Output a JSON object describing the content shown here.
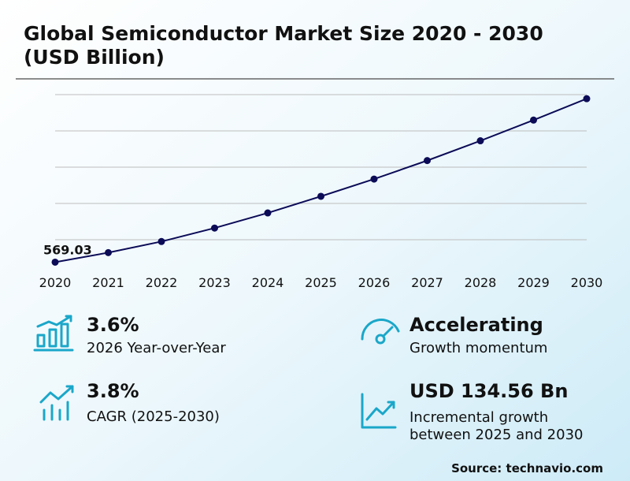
{
  "chart_data": {
    "type": "line",
    "title": [
      "Global Semiconductor Market Size 2020 - 2030",
      "(USD Billion)"
    ],
    "categories": [
      "2020",
      "2021",
      "2022",
      "2023",
      "2024",
      "2025",
      "2026",
      "2027",
      "2028",
      "2029",
      "2030"
    ],
    "values": [
      569.03,
      582.2,
      597.5,
      616.1,
      636.9,
      659.8,
      683.6,
      709.1,
      736.4,
      764.9,
      794.4
    ],
    "color": "#0b0b57",
    "ylim": [
      560,
      810
    ],
    "yticks": [
      600,
      650,
      700,
      750,
      800
    ],
    "grid": true
  },
  "stats": [
    {
      "value": "3.6%",
      "label": [
        "2026 Year-over-Year"
      ]
    },
    {
      "value": "Accelerating",
      "label": [
        "Growth momentum"
      ]
    },
    {
      "value": "3.8%",
      "label": [
        "CAGR (2025-2030)"
      ]
    },
    {
      "value": "USD 134.56 Bn",
      "label": [
        "Incremental growth",
        "between 2025 and 2030"
      ]
    }
  ],
  "source": "Source: technavio.com"
}
